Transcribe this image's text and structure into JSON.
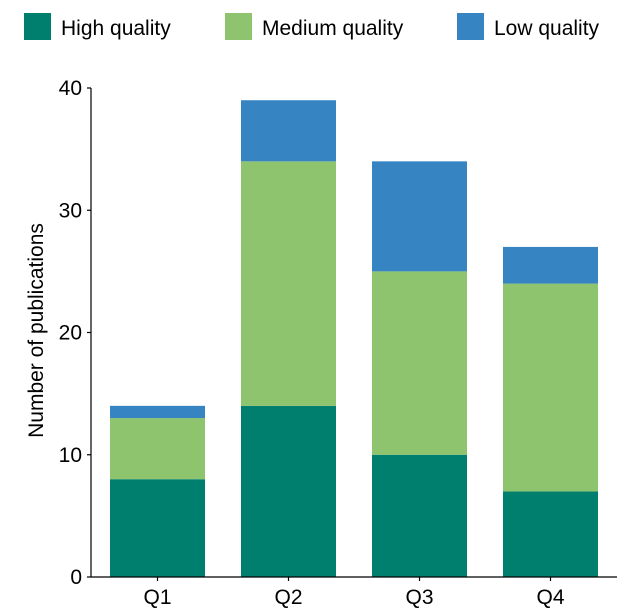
{
  "chart_data": {
    "type": "bar",
    "stacked": true,
    "title": "",
    "xlabel": "",
    "ylabel": "Number of publications",
    "ylim": [
      0,
      40
    ],
    "yticks": [
      0,
      10,
      20,
      30,
      40
    ],
    "grid": false,
    "legend_position": "top",
    "categories": [
      "Q1",
      "Q2",
      "Q3",
      "Q4"
    ],
    "series": [
      {
        "name": "High quality",
        "color": "#007f6e",
        "values": [
          8,
          14,
          10,
          7
        ]
      },
      {
        "name": "Medium quality",
        "color": "#8ec46e",
        "values": [
          5,
          20,
          15,
          17
        ]
      },
      {
        "name": "Low quality",
        "color": "#3784c3",
        "values": [
          1,
          5,
          9,
          3
        ]
      }
    ]
  }
}
